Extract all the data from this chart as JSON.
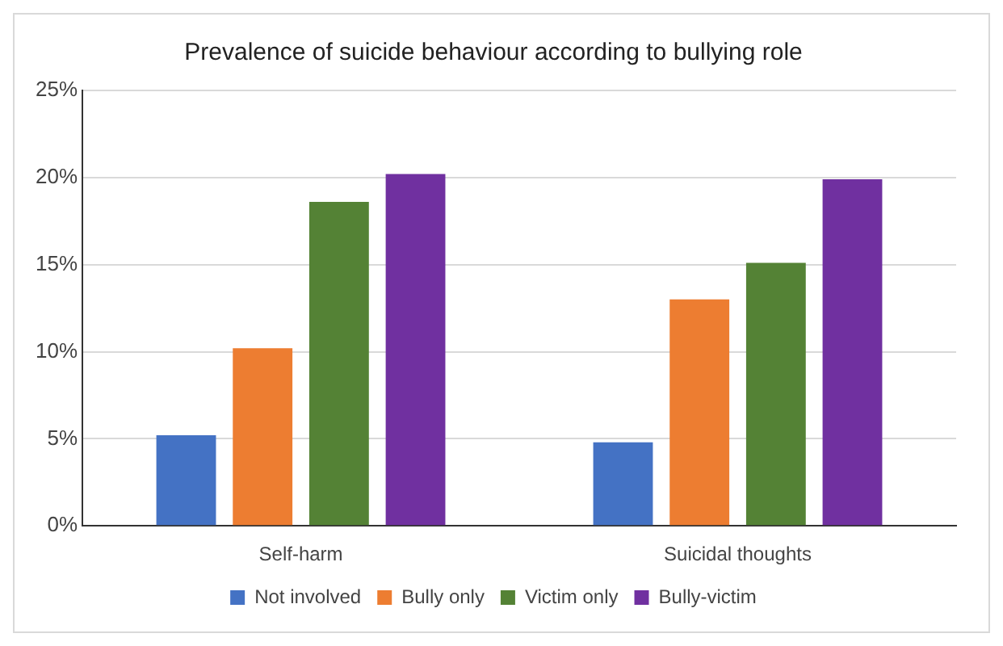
{
  "chart_data": {
    "type": "bar",
    "title": "Prevalence of suicide behaviour according to bullying role",
    "categories": [
      "Self-harm",
      "Suicidal thoughts"
    ],
    "series": [
      {
        "name": "Not involved",
        "color": "#4472c4",
        "values": [
          5.2,
          4.8
        ]
      },
      {
        "name": "Bully only",
        "color": "#ed7d31",
        "values": [
          10.2,
          13.0
        ]
      },
      {
        "name": "Victim only",
        "color": "#548235",
        "values": [
          18.6,
          15.1
        ]
      },
      {
        "name": "Bully-victim",
        "color": "#7030a0",
        "values": [
          20.2,
          19.9
        ]
      }
    ],
    "ylim": [
      0,
      25
    ],
    "yticks": [
      {
        "value": 0,
        "label": "0%"
      },
      {
        "value": 5,
        "label": "5%"
      },
      {
        "value": 10,
        "label": "10%"
      },
      {
        "value": 15,
        "label": "15%"
      },
      {
        "value": 20,
        "label": "20%"
      },
      {
        "value": 25,
        "label": "25%"
      }
    ],
    "grid": "y",
    "legend": "bottom"
  }
}
